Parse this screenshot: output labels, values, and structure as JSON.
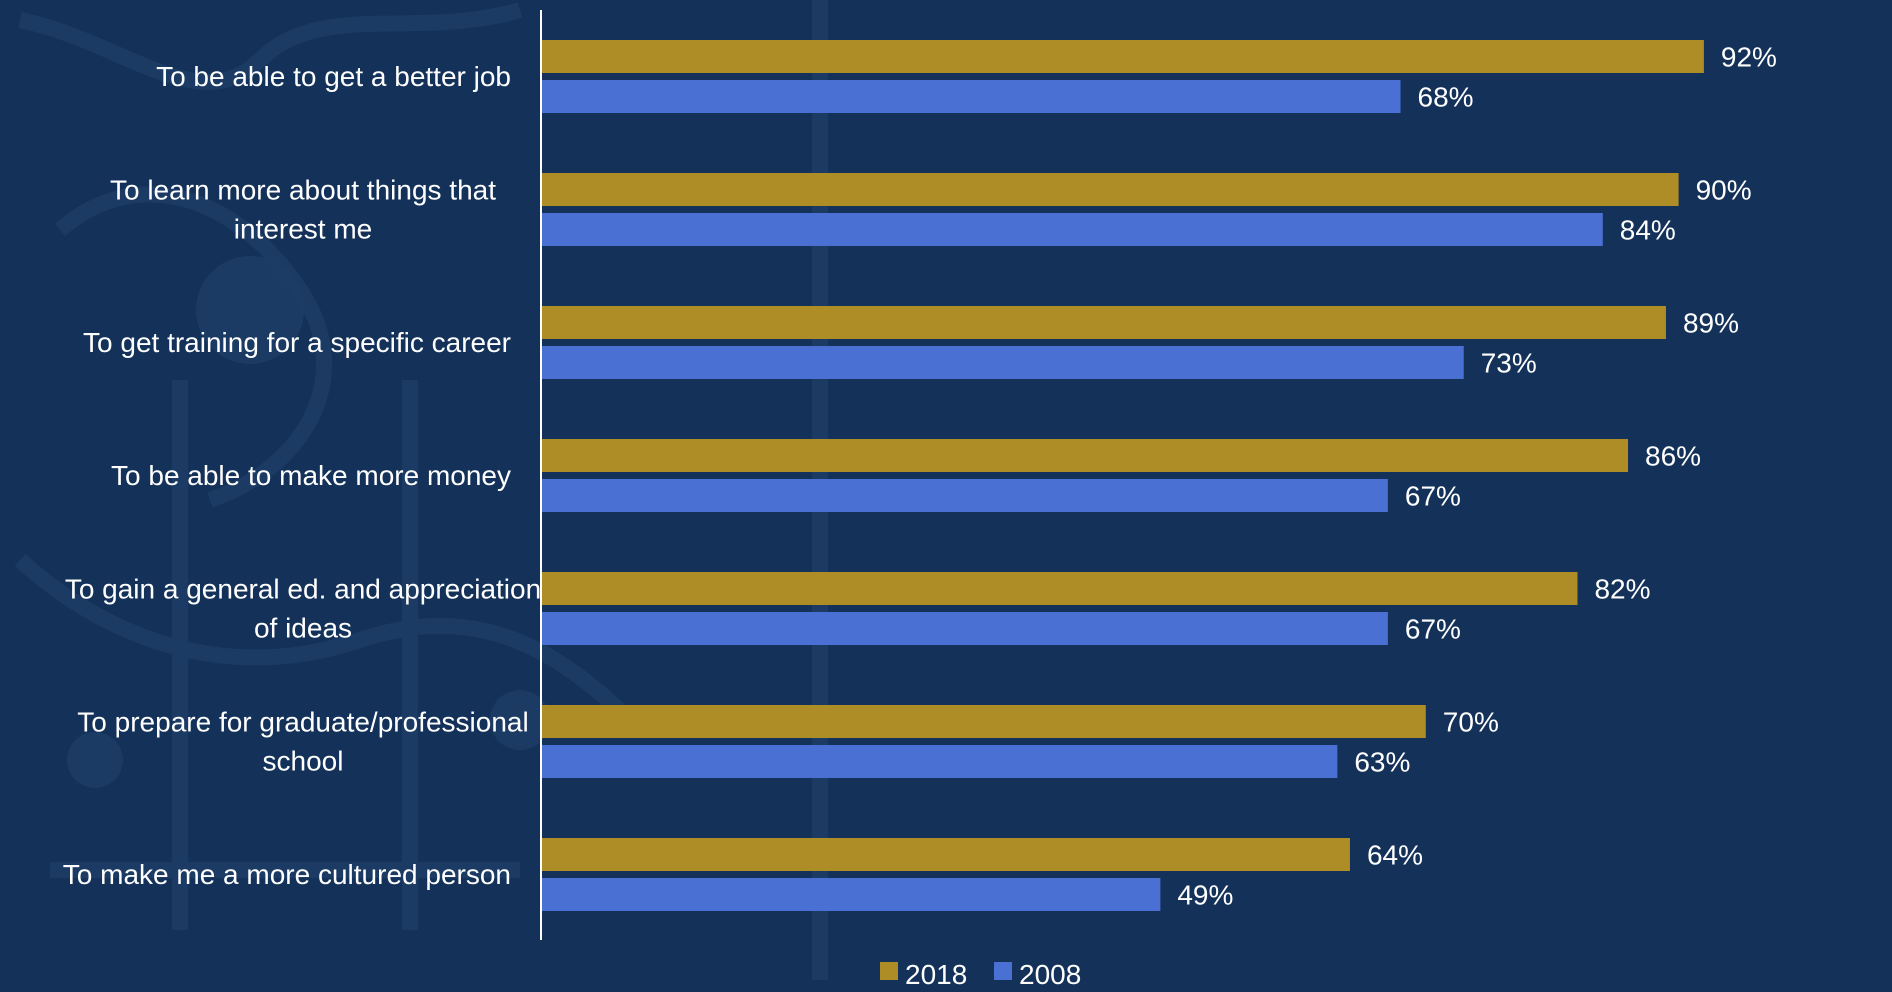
{
  "chart_data": {
    "type": "bar",
    "orientation": "horizontal",
    "categories": [
      "To be able to get a better job",
      "To learn more about things that interest me",
      "To get training for a specific career",
      "To be able to make more money",
      "To gain a general ed. and appreciation of ideas",
      "To prepare for graduate/professional school",
      "To make me a more cultured person"
    ],
    "category_lines": [
      [
        "To be able to get a better job"
      ],
      [
        "To learn more about things that",
        "interest me"
      ],
      [
        "To get training for a specific career"
      ],
      [
        "To be able to make more money"
      ],
      [
        "To gain a general ed. and appreciation",
        "of ideas"
      ],
      [
        "To prepare for graduate/professional",
        "school"
      ],
      [
        "To make me a more cultured person"
      ]
    ],
    "series": [
      {
        "name": "2018",
        "color": "#ae8d26",
        "values": [
          92,
          90,
          89,
          86,
          82,
          70,
          64
        ],
        "labels": [
          "92%",
          "90%",
          "89%",
          "86%",
          "82%",
          "70%",
          "64%"
        ]
      },
      {
        "name": "2008",
        "color": "#4b70d4",
        "values": [
          68,
          84,
          73,
          67,
          67,
          63,
          49
        ],
        "labels": [
          "68%",
          "84%",
          "73%",
          "67%",
          "67%",
          "63%",
          "49%"
        ]
      }
    ],
    "xlim": [
      0,
      100
    ],
    "value_unit": "%",
    "legend_position": "bottom",
    "grid": false,
    "axis_color": "#ffffff",
    "background_color": "#133159"
  }
}
